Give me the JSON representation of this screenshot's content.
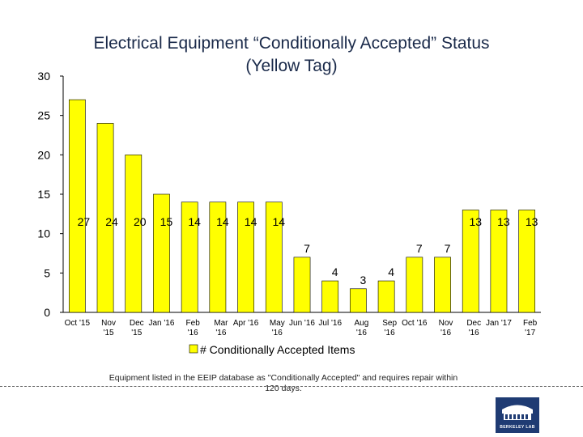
{
  "chart_data": {
    "type": "bar",
    "title": "Electrical Equipment “Conditionally Accepted” Status (Yellow Tag)",
    "title_lines": [
      "Electrical Equipment “Conditionally Accepted” Status",
      "(Yellow Tag)"
    ],
    "categories": [
      "Oct '15",
      "Nov '15",
      "Dec '15",
      "Jan '16",
      "Feb '16",
      "Mar '16",
      "Apr '16",
      "May '16",
      "Jun '16",
      "Jul '16",
      "Aug '16",
      "Sep '16",
      "Oct '16",
      "Nov '16",
      "Dec '16",
      "Jan '17",
      "Feb '17"
    ],
    "category_lines": [
      [
        "Oct '15"
      ],
      [
        "Nov",
        "'15"
      ],
      [
        "Dec",
        "'15"
      ],
      [
        "Jan '16"
      ],
      [
        "Feb",
        "'16"
      ],
      [
        "Mar",
        "'16"
      ],
      [
        "Apr '16"
      ],
      [
        "May",
        "'16"
      ],
      [
        "Jun '16"
      ],
      [
        "Jul '16"
      ],
      [
        "Aug",
        "'16"
      ],
      [
        "Sep",
        "'16"
      ],
      [
        "Oct '16"
      ],
      [
        "Nov",
        "'16"
      ],
      [
        "Dec",
        "'16"
      ],
      [
        "Jan '17"
      ],
      [
        "Feb",
        "'17"
      ]
    ],
    "series": [
      {
        "name": "# Conditionally Accepted Items",
        "values": [
          27,
          24,
          20,
          15,
          14,
          14,
          14,
          14,
          7,
          4,
          3,
          4,
          7,
          7,
          13,
          13,
          13
        ]
      }
    ],
    "ylim": [
      0,
      30
    ],
    "yticks": [
      0,
      5,
      10,
      15,
      20,
      25,
      30
    ],
    "legend_position": "bottom",
    "grid": false,
    "bar_color": "#ffff00",
    "bar_edge_color": "#000000"
  },
  "footnote": "Equipment listed in the EEIP database as \"Conditionally Accepted\" and requires repair within 120 days.",
  "logo_text": "BERKELEY LAB"
}
